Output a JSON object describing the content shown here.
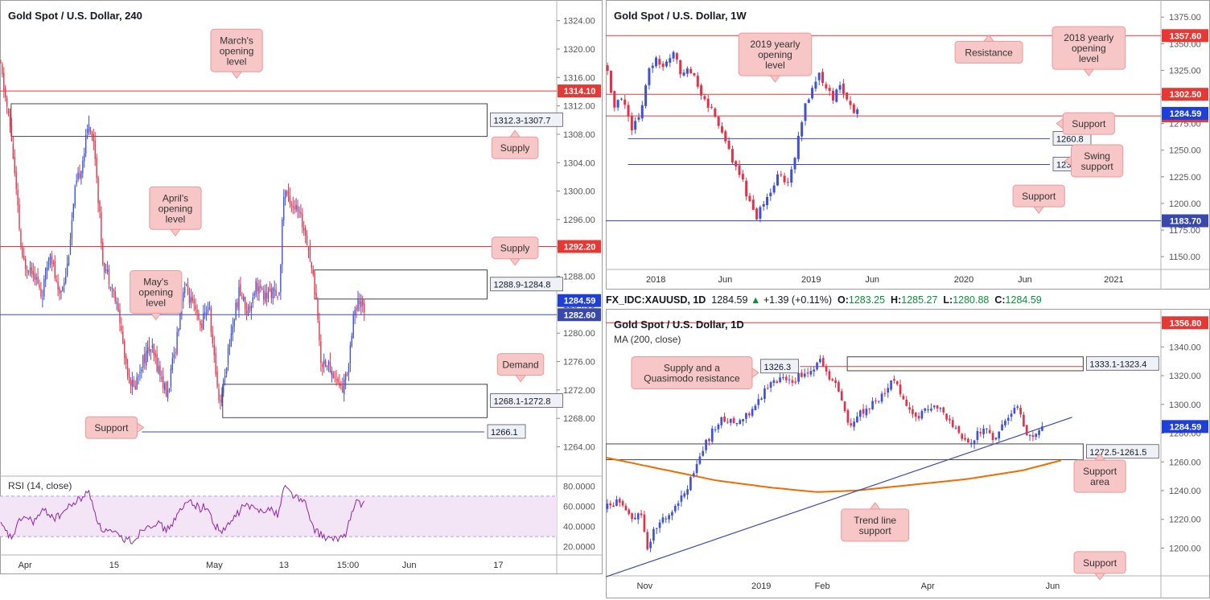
{
  "colors": {
    "up": "#3f51d4",
    "down": "#e0334a",
    "red_line": "#e53935",
    "blue_line": "#3949ab",
    "ma": "#ef6c00",
    "callout_bg": "#f7c6c6",
    "callout_border": "#e89a9a",
    "rsi_line": "#8e24aa",
    "rsi_band": "#f3e5f5"
  },
  "chart_data": [
    {
      "id": "h4",
      "type": "candlestick",
      "title": "Gold Spot / U.S. Dollar, 240",
      "ylim": [
        1261,
        1326
      ],
      "yticks": [
        "1324.00",
        "1320.00",
        "1316.00",
        "1312.00",
        "1308.00",
        "1304.00",
        "1300.00",
        "1296.00",
        "1292.00",
        "1288.00",
        "1284.00",
        "1280.00",
        "1276.00",
        "1272.00",
        "1268.00",
        "1264.00"
      ],
      "xlabels": [
        {
          "label": "Apr",
          "t": 0.045
        },
        {
          "label": "15",
          "t": 0.205
        },
        {
          "label": "May",
          "t": 0.385
        },
        {
          "label": "13",
          "t": 0.51
        },
        {
          "label": "15:00",
          "t": 0.625
        },
        {
          "label": "Jun",
          "t": 0.735
        },
        {
          "label": "17",
          "t": 0.895
        }
      ],
      "path": [
        [
          0.0,
          1318
        ],
        [
          0.02,
          1308
        ],
        [
          0.04,
          1290
        ],
        [
          0.06,
          1289
        ],
        [
          0.075,
          1285
        ],
        [
          0.09,
          1292
        ],
        [
          0.105,
          1285
        ],
        [
          0.12,
          1289
        ],
        [
          0.135,
          1300
        ],
        [
          0.15,
          1305
        ],
        [
          0.16,
          1310
        ],
        [
          0.17,
          1306
        ],
        [
          0.185,
          1290
        ],
        [
          0.2,
          1287
        ],
        [
          0.215,
          1282
        ],
        [
          0.225,
          1276
        ],
        [
          0.24,
          1272
        ],
        [
          0.255,
          1276
        ],
        [
          0.27,
          1278
        ],
        [
          0.285,
          1275
        ],
        [
          0.3,
          1271
        ],
        [
          0.315,
          1278
        ],
        [
          0.33,
          1287
        ],
        [
          0.345,
          1284
        ],
        [
          0.36,
          1281
        ],
        [
          0.375,
          1284
        ],
        [
          0.385,
          1276
        ],
        [
          0.395,
          1270
        ],
        [
          0.405,
          1275
        ],
        [
          0.415,
          1280
        ],
        [
          0.43,
          1286
        ],
        [
          0.445,
          1283
        ],
        [
          0.46,
          1287
        ],
        [
          0.475,
          1285
        ],
        [
          0.49,
          1286
        ],
        [
          0.5,
          1284
        ],
        [
          0.51,
          1300
        ],
        [
          0.52,
          1299
        ],
        [
          0.535,
          1297
        ],
        [
          0.55,
          1294
        ],
        [
          0.56,
          1289
        ],
        [
          0.57,
          1284
        ],
        [
          0.575,
          1276
        ],
        [
          0.585,
          1276
        ],
        [
          0.6,
          1274
        ],
        [
          0.615,
          1272
        ],
        [
          0.625,
          1275
        ],
        [
          0.635,
          1283
        ],
        [
          0.645,
          1284
        ],
        [
          0.655,
          1283.5
        ]
      ],
      "seed": 11,
      "hlines": [
        {
          "value": 1314.1,
          "color": "red",
          "label": "1314.10",
          "x0": 0,
          "x1": 1
        },
        {
          "value": 1292.2,
          "color": "red",
          "label": "1292.20",
          "x0": 0,
          "x1": 1
        },
        {
          "value": 1282.6,
          "color": "blue",
          "label": "1282.60",
          "x0": 0,
          "x1": 1
        },
        {
          "value": 1266.1,
          "color": "blue",
          "label": "1266.1",
          "x0": 0.255,
          "x1": 0.87
        }
      ],
      "current": {
        "value": 1284.59,
        "label": "1284.59"
      },
      "zones": [
        {
          "top": 1312.3,
          "bottom": 1307.7,
          "x0": 0.02,
          "x1": 0.875,
          "label": "1312.3-1307.7"
        },
        {
          "top": 1288.9,
          "bottom": 1284.8,
          "x0": 0.565,
          "x1": 0.875,
          "label": "1288.9-1284.8"
        },
        {
          "top": 1272.8,
          "bottom": 1268.1,
          "x0": 0.4,
          "x1": 0.875,
          "label": "1268.1-1272.8"
        }
      ],
      "annotations": [
        {
          "lines": [
            "March's",
            "opening",
            "level"
          ],
          "cx": 0.425,
          "y": 1319.8,
          "arrow": "down"
        },
        {
          "lines": [
            "Supply"
          ],
          "cx": 0.925,
          "y": 1306.1,
          "arrow": "up"
        },
        {
          "lines": [
            "April's",
            "opening",
            "level"
          ],
          "cx": 0.315,
          "y": 1297.6,
          "arrow": "down"
        },
        {
          "lines": [
            "Supply"
          ],
          "cx": 0.925,
          "y": 1292.0,
          "arrow": "down"
        },
        {
          "lines": [
            "May's",
            "opening",
            "level"
          ],
          "cx": 0.28,
          "y": 1285.8,
          "arrow": "down"
        },
        {
          "lines": [
            "Demand"
          ],
          "cx": 0.935,
          "y": 1275.6,
          "arrow": "down"
        },
        {
          "lines": [
            "Support"
          ],
          "cx": 0.2,
          "y": 1266.7,
          "arrow": "right"
        }
      ],
      "rsi": {
        "title": "RSI (14, close)",
        "ylim": [
          15,
          85
        ],
        "band": [
          30,
          70
        ],
        "yticks": [
          "80.0000",
          "60.0000",
          "40.0000",
          "20.0000"
        ],
        "path": [
          [
            0.0,
            42
          ],
          [
            0.02,
            28
          ],
          [
            0.04,
            50
          ],
          [
            0.06,
            45
          ],
          [
            0.08,
            56
          ],
          [
            0.1,
            48
          ],
          [
            0.13,
            62
          ],
          [
            0.16,
            74
          ],
          [
            0.18,
            38
          ],
          [
            0.2,
            34
          ],
          [
            0.22,
            28
          ],
          [
            0.24,
            26
          ],
          [
            0.26,
            40
          ],
          [
            0.28,
            44
          ],
          [
            0.3,
            36
          ],
          [
            0.32,
            52
          ],
          [
            0.34,
            66
          ],
          [
            0.36,
            58
          ],
          [
            0.37,
            60
          ],
          [
            0.385,
            42
          ],
          [
            0.4,
            34
          ],
          [
            0.42,
            48
          ],
          [
            0.44,
            62
          ],
          [
            0.46,
            56
          ],
          [
            0.48,
            58
          ],
          [
            0.5,
            52
          ],
          [
            0.51,
            80
          ],
          [
            0.53,
            70
          ],
          [
            0.55,
            62
          ],
          [
            0.56,
            40
          ],
          [
            0.58,
            30
          ],
          [
            0.6,
            26
          ],
          [
            0.62,
            32
          ],
          [
            0.63,
            50
          ],
          [
            0.64,
            64
          ],
          [
            0.655,
            62
          ]
        ]
      }
    },
    {
      "id": "w1",
      "type": "candlestick",
      "title": "Gold Spot / U.S. Dollar, 1W",
      "ylim": [
        1138,
        1385
      ],
      "yticks": [
        "1375.00",
        "1350.00",
        "1325.00",
        "1300.00",
        "1275.00",
        "1250.00",
        "1225.00",
        "1200.00",
        "1175.00",
        "1150.00"
      ],
      "xlabels": [
        {
          "label": "2018",
          "t": 0.09
        },
        {
          "label": "Jun",
          "t": 0.215
        },
        {
          "label": "2019",
          "t": 0.37
        },
        {
          "label": "Jun",
          "t": 0.48
        },
        {
          "label": "2020",
          "t": 0.645
        },
        {
          "label": "Jun",
          "t": 0.755
        },
        {
          "label": "2021",
          "t": 0.915
        }
      ],
      "path": [
        [
          0.0,
          1330
        ],
        [
          0.015,
          1290
        ],
        [
          0.03,
          1300
        ],
        [
          0.045,
          1270
        ],
        [
          0.06,
          1280
        ],
        [
          0.075,
          1320
        ],
        [
          0.09,
          1340
        ],
        [
          0.105,
          1325
        ],
        [
          0.12,
          1345
        ],
        [
          0.135,
          1320
        ],
        [
          0.15,
          1330
        ],
        [
          0.165,
          1310
        ],
        [
          0.18,
          1295
        ],
        [
          0.2,
          1280
        ],
        [
          0.22,
          1250
        ],
        [
          0.24,
          1230
        ],
        [
          0.26,
          1200
        ],
        [
          0.27,
          1185
        ],
        [
          0.285,
          1200
        ],
        [
          0.3,
          1210
        ],
        [
          0.31,
          1230
        ],
        [
          0.325,
          1215
        ],
        [
          0.34,
          1240
        ],
        [
          0.355,
          1285
        ],
        [
          0.37,
          1305
        ],
        [
          0.385,
          1325
        ],
        [
          0.395,
          1310
        ],
        [
          0.41,
          1300
        ],
        [
          0.425,
          1310
        ],
        [
          0.44,
          1290
        ],
        [
          0.455,
          1285
        ]
      ],
      "seed": 5,
      "hlines": [
        {
          "value": 1357.6,
          "color": "red",
          "label": "1357.60",
          "x0": 0,
          "x1": 1
        },
        {
          "value": 1302.5,
          "color": "red",
          "label": "1302.50",
          "x0": 0,
          "x1": 1
        },
        {
          "value": 1282.2,
          "color": "red",
          "label": "1282.20",
          "x0": 0,
          "x1": 1
        },
        {
          "value": 1260.8,
          "color": "blue",
          "label": "1260.8",
          "x0": 0.04,
          "x1": 0.8
        },
        {
          "value": 1236.6,
          "color": "blue",
          "label": "1236.6",
          "x0": 0.04,
          "x1": 0.8
        },
        {
          "value": 1183.7,
          "color": "blue",
          "label": "1183.70",
          "x0": 0,
          "x1": 1
        }
      ],
      "current": {
        "value": 1284.59,
        "label": "1284.59"
      },
      "zones": [],
      "annotations": [
        {
          "lines": [
            "2019 yearly",
            "opening",
            "level"
          ],
          "cx": 0.305,
          "y": 1340,
          "arrow": "down"
        },
        {
          "lines": [
            "Resistance"
          ],
          "cx": 0.69,
          "y": 1342,
          "arrow": "up"
        },
        {
          "lines": [
            "2018 yearly",
            "opening",
            "level"
          ],
          "cx": 0.87,
          "y": 1346,
          "arrow": "down"
        },
        {
          "lines": [
            "Support"
          ],
          "cx": 0.87,
          "y": 1275,
          "arrow": "left"
        },
        {
          "lines": [
            "Swing",
            "support"
          ],
          "cx": 0.885,
          "y": 1240,
          "arrow": "left"
        },
        {
          "lines": [
            "Support"
          ],
          "cx": 0.78,
          "y": 1207,
          "arrow": "down"
        }
      ]
    },
    {
      "id": "d1",
      "type": "candlestick",
      "title": "Gold Spot / U.S. Dollar, 1D",
      "ylim": [
        1179,
        1362
      ],
      "yticks": [
        "1340.00",
        "1320.00",
        "1300.00",
        "1280.00",
        "1260.00",
        "1240.00",
        "1220.00",
        "1200.00"
      ],
      "xlabels": [
        {
          "label": "Nov",
          "t": 0.07
        },
        {
          "label": "2019",
          "t": 0.28
        },
        {
          "label": "Feb",
          "t": 0.39
        },
        {
          "label": "Apr",
          "t": 0.58
        },
        {
          "label": "Jun",
          "t": 0.805
        }
      ],
      "path": [
        [
          0.0,
          1228
        ],
        [
          0.02,
          1232
        ],
        [
          0.035,
          1225
        ],
        [
          0.05,
          1218
        ],
        [
          0.06,
          1228
        ],
        [
          0.075,
          1200
        ],
        [
          0.09,
          1215
        ],
        [
          0.11,
          1222
        ],
        [
          0.13,
          1232
        ],
        [
          0.15,
          1245
        ],
        [
          0.17,
          1265
        ],
        [
          0.19,
          1280
        ],
        [
          0.21,
          1290
        ],
        [
          0.23,
          1288
        ],
        [
          0.25,
          1292
        ],
        [
          0.27,
          1298
        ],
        [
          0.29,
          1312
        ],
        [
          0.31,
          1318
        ],
        [
          0.33,
          1315
        ],
        [
          0.35,
          1320
        ],
        [
          0.37,
          1322
        ],
        [
          0.385,
          1334
        ],
        [
          0.4,
          1318
        ],
        [
          0.42,
          1310
        ],
        [
          0.44,
          1285
        ],
        [
          0.46,
          1295
        ],
        [
          0.48,
          1300
        ],
        [
          0.5,
          1308
        ],
        [
          0.52,
          1318
        ],
        [
          0.54,
          1300
        ],
        [
          0.56,
          1290
        ],
        [
          0.58,
          1298
        ],
        [
          0.6,
          1300
        ],
        [
          0.62,
          1286
        ],
        [
          0.64,
          1278
        ],
        [
          0.66,
          1275
        ],
        [
          0.68,
          1285
        ],
        [
          0.7,
          1276
        ],
        [
          0.72,
          1290
        ],
        [
          0.74,
          1300
        ],
        [
          0.76,
          1278
        ],
        [
          0.775,
          1277
        ],
        [
          0.79,
          1285
        ]
      ],
      "seed": 23,
      "hlines": [
        {
          "value": 1356.8,
          "color": "red",
          "label": "1356.80",
          "x0": 0,
          "x1": 1
        },
        {
          "value": 1326.3,
          "color": "red",
          "label": "",
          "x0": 0.35,
          "x1": 0.86
        }
      ],
      "current": {
        "value": 1284.59,
        "label": "1284.59"
      },
      "zones": [
        {
          "top": 1333.1,
          "bottom": 1323.4,
          "x0": 0.435,
          "x1": 0.86,
          "label": "1333.1-1323.4"
        },
        {
          "top": 1272.5,
          "bottom": 1261.5,
          "x0": 0.0,
          "x1": 0.86,
          "label": "1272.5-1261.5"
        }
      ],
      "points": [
        {
          "value": 1326.3,
          "t": 0.35,
          "label": "1326.3"
        }
      ],
      "trendline": {
        "x0": 0.0,
        "y0": 1180,
        "x1": 0.84,
        "y1": 1291
      },
      "ma": {
        "title": "MA (200, close)",
        "path": [
          [
            0.0,
            1263
          ],
          [
            0.1,
            1255
          ],
          [
            0.2,
            1247
          ],
          [
            0.3,
            1242
          ],
          [
            0.38,
            1239
          ],
          [
            0.45,
            1240
          ],
          [
            0.55,
            1244
          ],
          [
            0.65,
            1248
          ],
          [
            0.75,
            1254
          ],
          [
            0.82,
            1261
          ]
        ]
      },
      "annotations": [
        {
          "lines": [
            "Supply and a",
            "Quasimodo resistance"
          ],
          "cx": 0.155,
          "y": 1322,
          "arrow": "right"
        },
        {
          "lines": [
            "Support",
            "area"
          ],
          "cx": 0.89,
          "y": 1250,
          "arrow": "up"
        },
        {
          "lines": [
            "Trend line",
            "support"
          ],
          "cx": 0.485,
          "y": 1216,
          "arrow": "up"
        },
        {
          "lines": [
            "Support"
          ],
          "cx": 0.89,
          "y": 1190,
          "arrow": "down"
        }
      ]
    }
  ],
  "ohlc": {
    "symbol": "FX_IDC:XAUUSD, 1D",
    "price": "1284.59",
    "change": "+1.39 (+0.11%)",
    "o_label": "O:",
    "o": "1283.25",
    "h_label": "H:",
    "h": "1285.27",
    "l_label": "L:",
    "l": "1280.88",
    "c_label": "C:",
    "c": "1284.59"
  }
}
